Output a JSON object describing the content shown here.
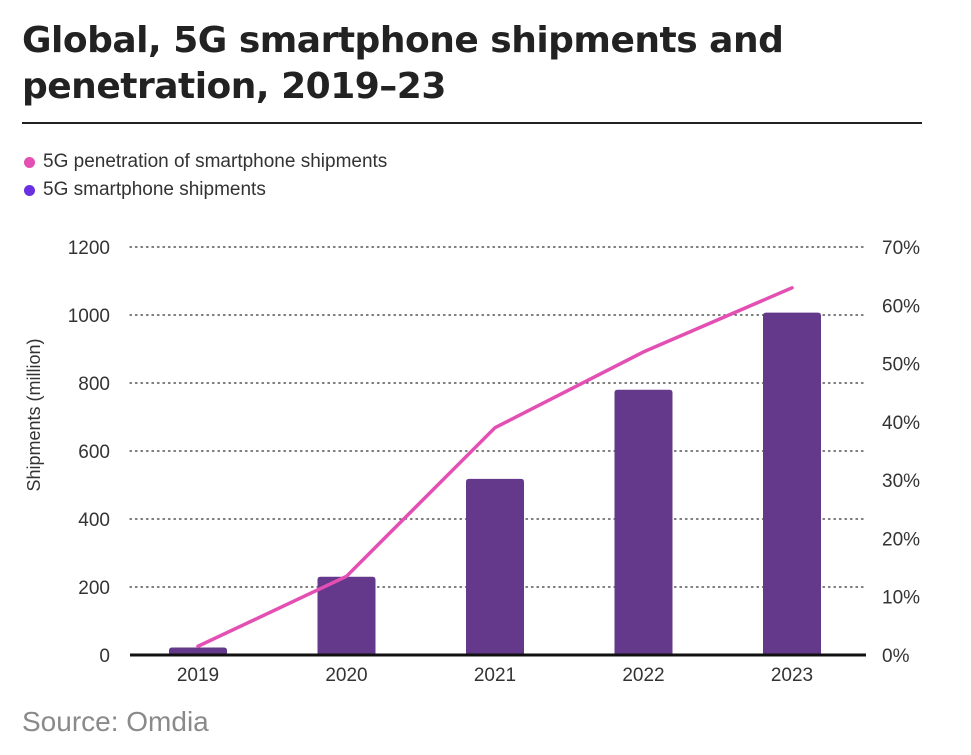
{
  "title": "Global, 5G smartphone shipments and penetration, 2019–23",
  "source": "Source: Omdia",
  "colors": {
    "bars": "#64398c",
    "line": "#e44fb3",
    "legend_line": "#e44fb3",
    "legend_bars": "#6a2fe0"
  },
  "chart_data": {
    "type": "bar",
    "categories": [
      "2019",
      "2020",
      "2021",
      "2022",
      "2023"
    ],
    "series": [
      {
        "name": "5G smartphone shipments",
        "type": "bar",
        "axis": "left",
        "values": [
          22,
          230,
          518,
          780,
          1007
        ]
      },
      {
        "name": "5G penetration of smartphone shipments",
        "type": "line",
        "axis": "right",
        "values": [
          1.5,
          13.5,
          39,
          52,
          63
        ]
      }
    ],
    "ylabel": "Shipments (million)",
    "ylim": [
      0,
      1200
    ],
    "y_ticks": [
      "0",
      "200",
      "400",
      "600",
      "800",
      "1000",
      "1200"
    ],
    "y2lim": [
      0,
      70
    ],
    "y2_ticks": [
      "0%",
      "10%",
      "20%",
      "30%",
      "40%",
      "50%",
      "60%",
      "70%"
    ],
    "grid": true,
    "legend_position": "top-left"
  }
}
